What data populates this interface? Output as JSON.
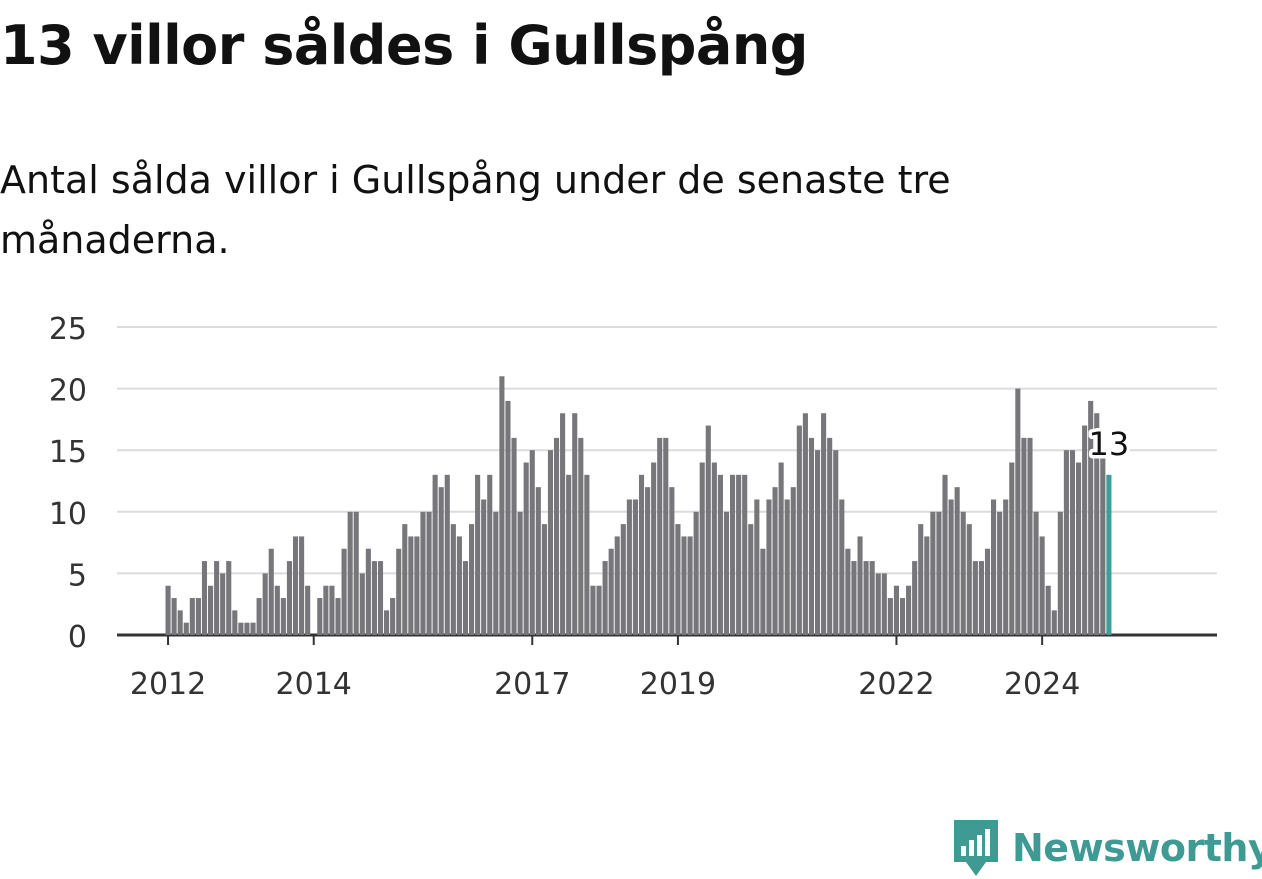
{
  "header": {
    "title": "13 villor såldes i Gullspång",
    "subtitle": "Antal sålda villor i Gullspång under de senaste tre månaderna."
  },
  "brand": {
    "name": "Newsworthy",
    "color": "#3f9a93"
  },
  "chart_data": {
    "type": "bar",
    "x_start": "2012-01",
    "x_end": "2024-12",
    "x_ticks": [
      "2012",
      "2014",
      "2017",
      "2019",
      "2022",
      "2024"
    ],
    "values": [
      4,
      3,
      2,
      1,
      3,
      3,
      6,
      4,
      6,
      5,
      6,
      2,
      1,
      1,
      1,
      3,
      5,
      7,
      4,
      3,
      6,
      8,
      8,
      4,
      0,
      3,
      4,
      4,
      3,
      7,
      10,
      10,
      5,
      7,
      6,
      6,
      2,
      3,
      7,
      9,
      8,
      8,
      10,
      10,
      13,
      12,
      13,
      9,
      8,
      6,
      9,
      13,
      11,
      13,
      10,
      21,
      19,
      16,
      10,
      14,
      15,
      12,
      9,
      15,
      16,
      18,
      13,
      18,
      16,
      13,
      4,
      4,
      6,
      7,
      8,
      9,
      11,
      11,
      13,
      12,
      14,
      16,
      16,
      12,
      9,
      8,
      8,
      10,
      14,
      17,
      14,
      13,
      10,
      13,
      13,
      13,
      9,
      11,
      7,
      11,
      12,
      14,
      11,
      12,
      17,
      18,
      16,
      15,
      18,
      16,
      15,
      11,
      7,
      6,
      8,
      6,
      6,
      5,
      5,
      3,
      4,
      3,
      4,
      6,
      9,
      8,
      10,
      10,
      13,
      11,
      12,
      10,
      9,
      6,
      6,
      7,
      11,
      10,
      11,
      14,
      20,
      16,
      16,
      10,
      8,
      4,
      2,
      10,
      15,
      15,
      14,
      17,
      19,
      18,
      15,
      13
    ],
    "highlight_last": true,
    "highlight_label": "13",
    "bar_color": "#76767b",
    "highlight_color": "#3a9f97",
    "y_ticks": [
      0,
      5,
      10,
      15,
      20,
      25
    ],
    "ylim": [
      0,
      25
    ],
    "grid": true,
    "xlabel": "",
    "ylabel": ""
  }
}
